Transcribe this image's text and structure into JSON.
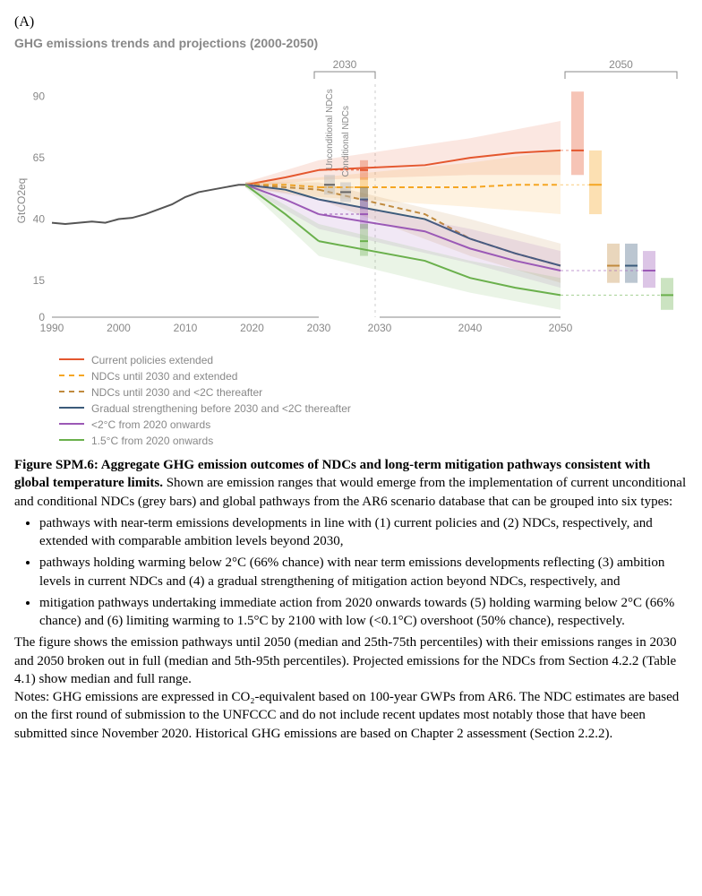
{
  "panel_label": "(A)",
  "chart_title": "GHG emissions trends and projections (2000-2050)",
  "ylabel": "GtCO2eq",
  "x_ticks": [
    1990,
    2000,
    2010,
    2020,
    2030,
    2030,
    2040,
    2050
  ],
  "y_ticks": [
    0,
    15,
    40,
    65,
    90
  ],
  "bracket_2030": "2030",
  "bracket_2050": "2050",
  "ndc_label_1": "Unconditional NDCs",
  "ndc_label_2": "Conditional NDCs",
  "chart": {
    "plot_x_domain": [
      1990,
      2055
    ],
    "plot_y_domain": [
      0,
      95
    ],
    "historical_color": "#555555",
    "historical": [
      [
        1990,
        38.5
      ],
      [
        1992,
        38
      ],
      [
        1994,
        38.5
      ],
      [
        1996,
        39
      ],
      [
        1998,
        38.5
      ],
      [
        2000,
        40
      ],
      [
        2002,
        40.5
      ],
      [
        2004,
        42
      ],
      [
        2006,
        44
      ],
      [
        2008,
        46
      ],
      [
        2010,
        49
      ],
      [
        2012,
        51
      ],
      [
        2014,
        52
      ],
      [
        2016,
        53
      ],
      [
        2018,
        54
      ],
      [
        2019,
        54
      ]
    ],
    "series": [
      {
        "id": "current_policies",
        "label": "Current policies extended",
        "color": "#e4572e",
        "dash": "none",
        "line": [
          [
            2019,
            54
          ],
          [
            2025,
            57
          ],
          [
            2030,
            60
          ],
          [
            2035,
            62
          ],
          [
            2040,
            65
          ],
          [
            2045,
            67
          ],
          [
            2050,
            68
          ]
        ],
        "band": [
          [
            2019,
            53,
            55
          ],
          [
            2030,
            56,
            64
          ],
          [
            2040,
            58,
            73
          ],
          [
            2050,
            58,
            80
          ]
        ]
      },
      {
        "id": "ndcs_extended",
        "label": "NDCs until 2030 and extended",
        "color": "#f5a623",
        "dash": "6,4",
        "line": [
          [
            2019,
            54
          ],
          [
            2025,
            54
          ],
          [
            2030,
            53
          ],
          [
            2035,
            53
          ],
          [
            2040,
            53
          ],
          [
            2045,
            54
          ],
          [
            2050,
            54
          ]
        ],
        "band": [
          [
            2019,
            53,
            55
          ],
          [
            2030,
            49,
            57
          ],
          [
            2040,
            45,
            63
          ],
          [
            2050,
            42,
            68
          ]
        ]
      },
      {
        "id": "ndcs_then_2c",
        "label": "NDCs until 2030 and <2C thereafter",
        "color": "#c08a3e",
        "dash": "6,4",
        "line": [
          [
            2019,
            54
          ],
          [
            2025,
            53
          ],
          [
            2030,
            52
          ],
          [
            2035,
            42
          ],
          [
            2040,
            32
          ],
          [
            2045,
            26
          ],
          [
            2050,
            21
          ]
        ],
        "band": [
          [
            2019,
            53,
            55
          ],
          [
            2030,
            48,
            55
          ],
          [
            2040,
            25,
            40
          ],
          [
            2050,
            14,
            30
          ]
        ]
      },
      {
        "id": "gradual_2c",
        "label": "Gradual strengthening before 2030 and <2C thereafter",
        "color": "#3b5b7a",
        "dash": "none",
        "line": [
          [
            2019,
            54
          ],
          [
            2025,
            52
          ],
          [
            2030,
            48
          ],
          [
            2035,
            40
          ],
          [
            2040,
            32
          ],
          [
            2045,
            26
          ],
          [
            2050,
            21
          ]
        ],
        "band": null
      },
      {
        "id": "2c_now",
        "label": "<2°C from 2020 onwards",
        "color": "#9b59b6",
        "dash": "none",
        "line": [
          [
            2019,
            54
          ],
          [
            2025,
            48
          ],
          [
            2030,
            42
          ],
          [
            2035,
            35
          ],
          [
            2040,
            28
          ],
          [
            2045,
            23
          ],
          [
            2050,
            19
          ]
        ],
        "band": [
          [
            2019,
            53,
            55
          ],
          [
            2030,
            36,
            48
          ],
          [
            2040,
            22,
            36
          ],
          [
            2050,
            12,
            27
          ]
        ]
      },
      {
        "id": "15c_now",
        "label": "1.5°C from 2020 onwards",
        "color": "#6ab04c",
        "dash": "none",
        "line": [
          [
            2019,
            54
          ],
          [
            2025,
            42
          ],
          [
            2030,
            31
          ],
          [
            2035,
            23
          ],
          [
            2040,
            16
          ],
          [
            2045,
            12
          ],
          [
            2050,
            9
          ]
        ],
        "band": [
          [
            2019,
            53,
            55
          ],
          [
            2030,
            25,
            38
          ],
          [
            2040,
            10,
            23
          ],
          [
            2050,
            3,
            16
          ]
        ]
      }
    ],
    "ndc_bars": [
      {
        "label": "Unconditional NDCs",
        "color": "#bbbbbb",
        "median": 54,
        "lo": 50,
        "hi": 58
      },
      {
        "label": "Conditional NDCs",
        "color": "#bbbbbb",
        "median": 51,
        "lo": 47,
        "hi": 55
      }
    ],
    "range_boxes_2030": [
      {
        "color": "#e4572e",
        "lo": 56,
        "hi": 64,
        "median": 60,
        "dashTo": true
      },
      {
        "color": "#f5a623",
        "lo": 49,
        "hi": 57,
        "median": 53,
        "dashTo": true
      },
      {
        "color": "#3b5b7a",
        "lo": 44,
        "hi": 53,
        "median": 48
      },
      {
        "color": "#9b59b6",
        "lo": 36,
        "hi": 48,
        "median": 42,
        "dashTo": true
      },
      {
        "color": "#6ab04c",
        "lo": 25,
        "hi": 38,
        "median": 31
      }
    ],
    "range_boxes_2050": [
      {
        "color": "#e4572e",
        "lo": 58,
        "hi": 92,
        "median": 68,
        "dashTo": true
      },
      {
        "color": "#f5a623",
        "lo": 42,
        "hi": 68,
        "median": 54,
        "dashTo": true
      },
      {
        "color": "#c08a3e",
        "lo": 14,
        "hi": 30,
        "median": 21
      },
      {
        "color": "#3b5b7a",
        "lo": 14,
        "hi": 30,
        "median": 21
      },
      {
        "color": "#9b59b6",
        "lo": 12,
        "hi": 27,
        "median": 19,
        "dashTo": true
      },
      {
        "color": "#6ab04c",
        "lo": 3,
        "hi": 16,
        "median": 9,
        "dashTo": true
      }
    ]
  },
  "caption": {
    "title": "Figure SPM.6: Aggregate GHG emission outcomes of NDCs and long-term mitigation pathways consistent with global temperature limits.",
    "lead": " Shown are emission ranges that would emerge from the implementation of current unconditional and conditional NDCs (grey bars) and global pathways from the AR6 scenario database that can be grouped into six types:",
    "bullets": [
      "pathways with near-term emissions developments in line with (1) current policies and (2) NDCs, respectively, and extended with comparable ambition levels beyond 2030,",
      "pathways holding warming below 2°C (66% chance) with near term emissions developments reflecting (3) ambition levels in current NDCs and (4) a gradual strengthening of mitigation action beyond NDCs, respectively, and",
      "mitigation pathways undertaking immediate action from 2020 onwards towards (5) holding warming below 2°C (66% chance) and (6) limiting warming to 1.5°C by 2100 with low (<0.1°C) overshoot (50% chance), respectively."
    ],
    "trail": "The figure shows the emission pathways until 2050 (median and 25th-75th percentiles) with their emissions ranges in 2030 and 2050 broken out in full (median and 5th-95th percentiles). Projected emissions for the NDCs from Section 4.2.2 (Table 4.1) show median and full range.",
    "notes": "Notes: GHG emissions are expressed in CO₂-equivalent based on 100-year GWPs from AR6. The NDC estimates are based on the first round of submission to the UNFCCC and do not include recent updates most notably those that have been submitted since November 2020. Historical GHG emissions are based on Chapter 2 assessment (Section 2.2.2)."
  }
}
